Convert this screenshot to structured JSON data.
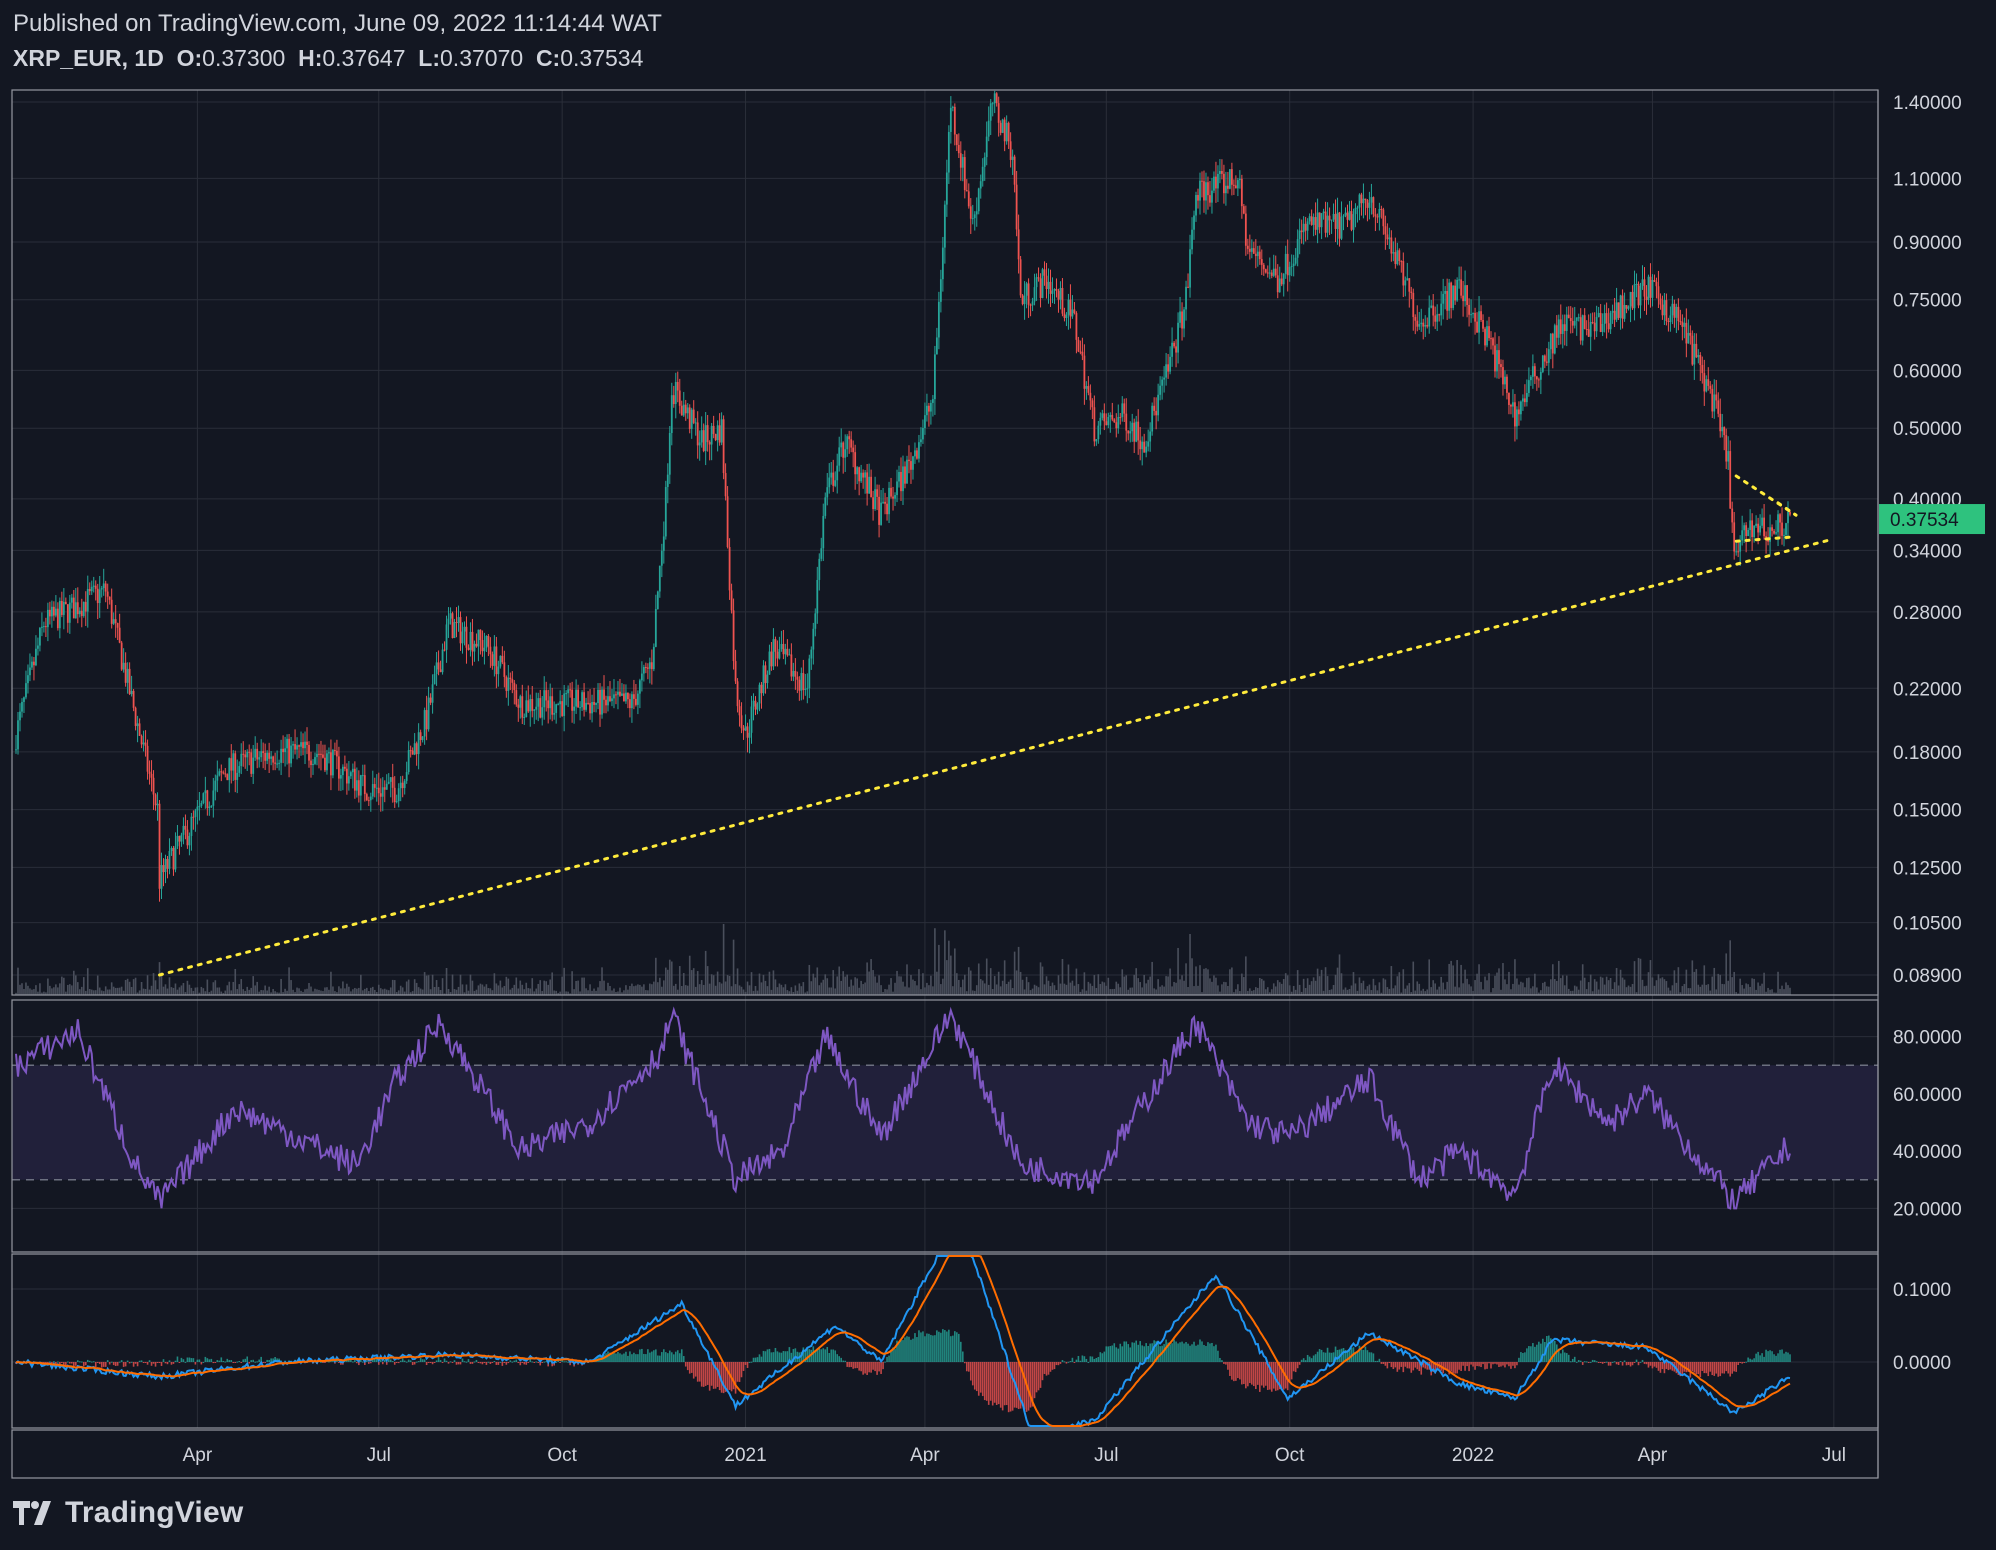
{
  "header": {
    "published": "Published on TradingView.com, June 09, 2022 11:14:44 WAT",
    "symbol": "XRP_EUR, 1D",
    "o_label": "O:",
    "o_value": "0.37300",
    "h_label": "H:",
    "h_value": "0.37647",
    "l_label": "L:",
    "l_value": "0.37070",
    "c_label": "C:",
    "c_value": "0.37534"
  },
  "brand": {
    "name": "TradingView"
  },
  "colors": {
    "background": "#131722",
    "grid": "#2a2e39",
    "up": "#26a69a",
    "down": "#ef5350",
    "volume": "#4a4f5c",
    "rsi": "#7e57c2",
    "rsi_band": "#21203a",
    "macd": "#2196f3",
    "signal": "#ff6d00",
    "trendline": "#ffeb3b",
    "price_tag": "#2ec27e"
  },
  "chart_data": {
    "type": "candlestick",
    "price_axis": {
      "scale": "log",
      "ticks": [
        "1.40000",
        "1.10000",
        "0.90000",
        "0.75000",
        "0.60000",
        "0.50000",
        "0.40000",
        "0.34000",
        "0.28000",
        "0.22000",
        "0.18000",
        "0.15000",
        "0.12500",
        "0.10500",
        "0.08900"
      ],
      "current_price": "0.37534"
    },
    "time_axis": {
      "ticks": [
        "Apr",
        "Jul",
        "Oct",
        "2021",
        "Apr",
        "Jul",
        "Oct",
        "2022",
        "Apr",
        "Jul"
      ],
      "start": "2020-01-01",
      "end": "2022-06-09"
    },
    "price_path": [
      [
        "2020-01-01",
        0.19
      ],
      [
        "2020-01-15",
        0.27
      ],
      [
        "2020-02-15",
        0.3
      ],
      [
        "2020-02-25",
        0.23
      ],
      [
        "2020-03-12",
        0.15
      ],
      [
        "2020-03-13",
        0.12
      ],
      [
        "2020-03-20",
        0.13
      ],
      [
        "2020-04-15",
        0.17
      ],
      [
        "2020-05-10",
        0.18
      ],
      [
        "2020-06-01",
        0.18
      ],
      [
        "2020-06-25",
        0.16
      ],
      [
        "2020-07-10",
        0.16
      ],
      [
        "2020-07-25",
        0.2
      ],
      [
        "2020-08-05",
        0.27
      ],
      [
        "2020-08-25",
        0.25
      ],
      [
        "2020-09-10",
        0.21
      ],
      [
        "2020-10-10",
        0.21
      ],
      [
        "2020-11-05",
        0.21
      ],
      [
        "2020-11-15",
        0.24
      ],
      [
        "2020-11-22",
        0.4
      ],
      [
        "2020-11-25",
        0.57
      ],
      [
        "2020-12-10",
        0.48
      ],
      [
        "2020-12-20",
        0.5
      ],
      [
        "2020-12-27",
        0.22
      ],
      [
        "2021-01-01",
        0.19
      ],
      [
        "2021-01-15",
        0.25
      ],
      [
        "2021-02-01",
        0.22
      ],
      [
        "2021-02-10",
        0.4
      ],
      [
        "2021-02-20",
        0.48
      ],
      [
        "2021-03-10",
        0.38
      ],
      [
        "2021-03-25",
        0.45
      ],
      [
        "2021-04-05",
        0.55
      ],
      [
        "2021-04-10",
        0.9
      ],
      [
        "2021-04-14",
        1.4
      ],
      [
        "2021-04-25",
        0.95
      ],
      [
        "2021-05-05",
        1.4
      ],
      [
        "2021-05-15",
        1.2
      ],
      [
        "2021-05-19",
        0.75
      ],
      [
        "2021-06-01",
        0.8
      ],
      [
        "2021-06-15",
        0.7
      ],
      [
        "2021-06-25",
        0.5
      ],
      [
        "2021-07-10",
        0.52
      ],
      [
        "2021-07-20",
        0.48
      ],
      [
        "2021-08-01",
        0.6
      ],
      [
        "2021-08-10",
        0.75
      ],
      [
        "2021-08-15",
        1.05
      ],
      [
        "2021-09-05",
        1.1
      ],
      [
        "2021-09-10",
        0.88
      ],
      [
        "2021-09-25",
        0.8
      ],
      [
        "2021-10-10",
        0.95
      ],
      [
        "2021-10-30",
        0.95
      ],
      [
        "2021-11-10",
        1.05
      ],
      [
        "2021-11-20",
        0.9
      ],
      [
        "2021-12-05",
        0.7
      ],
      [
        "2021-12-25",
        0.78
      ],
      [
        "2022-01-10",
        0.65
      ],
      [
        "2022-01-22",
        0.52
      ],
      [
        "2022-02-05",
        0.62
      ],
      [
        "2022-02-15",
        0.7
      ],
      [
        "2022-03-01",
        0.68
      ],
      [
        "2022-03-29",
        0.78
      ],
      [
        "2022-04-15",
        0.7
      ],
      [
        "2022-05-01",
        0.55
      ],
      [
        "2022-05-09",
        0.45
      ],
      [
        "2022-05-12",
        0.33
      ],
      [
        "2022-05-20",
        0.37
      ],
      [
        "2022-05-30",
        0.36
      ],
      [
        "2022-06-09",
        0.37534
      ]
    ],
    "annotations": [
      {
        "type": "trendline",
        "style": "dotted",
        "from": [
          "2020-03-13",
          0.089
        ],
        "to": [
          "2022-06-30",
          0.352
        ]
      },
      {
        "type": "trendline",
        "style": "dotted",
        "from": [
          "2022-05-13",
          0.43
        ],
        "to": [
          "2022-06-12",
          0.38
        ]
      },
      {
        "type": "trendline",
        "style": "dotted",
        "from": [
          "2022-05-13",
          0.35
        ],
        "to": [
          "2022-06-12",
          0.355
        ]
      }
    ],
    "rsi": {
      "ticks": [
        "80.0000",
        "60.0000",
        "40.0000",
        "20.0000"
      ],
      "upper_band": 70,
      "lower_band": 30,
      "path": [
        [
          "2020-01-01",
          70
        ],
        [
          "2020-02-01",
          82
        ],
        [
          "2020-03-01",
          35
        ],
        [
          "2020-03-13",
          22
        ],
        [
          "2020-04-20",
          55
        ],
        [
          "2020-06-20",
          35
        ],
        [
          "2020-07-10",
          65
        ],
        [
          "2020-08-01",
          85
        ],
        [
          "2020-09-10",
          40
        ],
        [
          "2020-10-15",
          50
        ],
        [
          "2020-11-20",
          75
        ],
        [
          "2020-11-25",
          88
        ],
        [
          "2020-12-27",
          30
        ],
        [
          "2021-01-20",
          40
        ],
        [
          "2021-02-10",
          80
        ],
        [
          "2021-03-10",
          45
        ],
        [
          "2021-04-14",
          88
        ],
        [
          "2021-05-19",
          35
        ],
        [
          "2021-06-25",
          30
        ],
        [
          "2021-08-15",
          85
        ],
        [
          "2021-09-10",
          50
        ],
        [
          "2021-10-01",
          45
        ],
        [
          "2021-11-10",
          65
        ],
        [
          "2021-12-05",
          30
        ],
        [
          "2021-12-25",
          40
        ],
        [
          "2022-01-22",
          25
        ],
        [
          "2022-02-10",
          70
        ],
        [
          "2022-03-10",
          50
        ],
        [
          "2022-03-29",
          60
        ],
        [
          "2022-05-12",
          22
        ],
        [
          "2022-06-09",
          42
        ]
      ]
    },
    "macd": {
      "ticks": [
        "0.1000",
        "0.0000"
      ],
      "path": [
        [
          "2020-01-01",
          0.0
        ],
        [
          "2020-03-13",
          -0.02
        ],
        [
          "2020-05-15",
          0.0
        ],
        [
          "2020-08-05",
          0.01
        ],
        [
          "2020-10-15",
          0.0
        ],
        [
          "2020-11-30",
          0.08
        ],
        [
          "2020-12-27",
          -0.06
        ],
        [
          "2021-02-15",
          0.05
        ],
        [
          "2021-03-10",
          0.0
        ],
        [
          "2021-04-18",
          0.2
        ],
        [
          "2021-05-25",
          -0.1
        ],
        [
          "2021-06-25",
          -0.08
        ],
        [
          "2021-08-25",
          0.12
        ],
        [
          "2021-09-30",
          -0.05
        ],
        [
          "2021-11-10",
          0.04
        ],
        [
          "2021-12-25",
          -0.03
        ],
        [
          "2022-01-22",
          -0.05
        ],
        [
          "2022-02-10",
          0.03
        ],
        [
          "2022-03-29",
          0.02
        ],
        [
          "2022-05-12",
          -0.07
        ],
        [
          "2022-06-09",
          -0.02
        ]
      ]
    }
  }
}
